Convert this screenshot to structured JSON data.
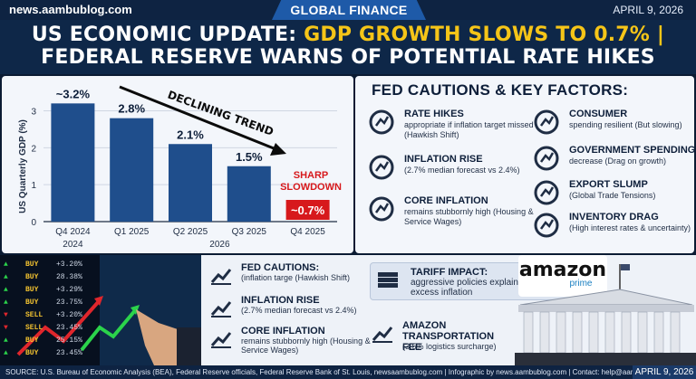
{
  "top_bar": {
    "site": "news.aambublog.com",
    "section": "GLOBAL FINANCE",
    "date": "APRIL 9, 2026"
  },
  "headline": {
    "line1_a": "US ECONOMIC UPDATE: ",
    "line1_b": "GDP GROWTH SLOWS TO 0.7% |",
    "line2": "FEDERAL RESERVE WARNS OF POTENTIAL RATE HIKES"
  },
  "chart_data": {
    "type": "bar",
    "categories": [
      "Q4 2024",
      "Q1 2025",
      "Q2 2025",
      "Q3 2025",
      "Q4 2025"
    ],
    "group_labels": [
      "2024",
      "2026"
    ],
    "values": [
      3.2,
      2.8,
      2.1,
      1.5,
      0.7
    ],
    "value_labels": [
      "~3.2%",
      "2.8%",
      "2.1%",
      "1.5%",
      "~0.7%"
    ],
    "ylabel": "US Quarterly GDP (%)",
    "yticks": [
      0,
      1,
      2,
      3
    ],
    "ylim": [
      0,
      3.6
    ],
    "annotations": [
      "DECLINING TREND",
      "SHARP",
      "SLOWDOWN"
    ],
    "colors": {
      "bar": "#1f4e8c",
      "highlight": "#d7191c",
      "trend": "#0b0b0b"
    }
  },
  "factors": {
    "title": "FED CAUTIONS & KEY FACTORS:",
    "items": [
      {
        "title": "RATE HIKES",
        "desc": "appropriate if inflation target missed (Hawkish Shift)",
        "icon": "gavel-icon"
      },
      {
        "title": "CONSUMER",
        "desc": "spending resilient (But slowing)",
        "icon": "people-icon"
      },
      {
        "title": "INFLATION RISE",
        "desc": "(2.7% median forecast vs 2.4%)",
        "icon": "compass-icon"
      },
      {
        "title": "GOVERNMENT SPENDING",
        "desc": "decrease (Drag on growth)",
        "icon": "map-pin-icon"
      },
      {
        "title": "EXPORT SLUMP",
        "desc": "(Global Trade Tensions)",
        "icon": "globe-icon"
      },
      {
        "title": "CORE INFLATION",
        "desc": "remains stubbornly high (Housing & Service Wages)",
        "icon": "trend-up-icon"
      },
      {
        "title": "INVENTORY DRAG",
        "desc": "(High interest rates & uncertainty)",
        "icon": "oil-rig-icon"
      }
    ]
  },
  "tariff": {
    "title": "TARIFF IMPACT:",
    "desc": "aggressive policies explain near half of excess inflation",
    "icon": "coins-icon"
  },
  "amazon": {
    "logo": "amazon",
    "sub": "prime"
  },
  "lower_items": [
    {
      "title": "FED CAUTIONS:",
      "desc": "(inflation targe (Hawkish Shift)",
      "icon": "gavel-icon"
    },
    {
      "title": "INFLATION RISE",
      "desc": "(2.7% median forecast vs 2.4%)",
      "icon": "trend-up-icon"
    },
    {
      "title": "CORE INFLATION",
      "desc": "remains stubbornly high (Housing & Service Wages)",
      "icon": "trend-up-icon"
    },
    {
      "title": "AMAZON TRANSPORTATION FEE",
      "desc": "(3.5% logistics surcharge)",
      "icon": "dollar-chart-icon"
    }
  ],
  "ticker": {
    "rows": [
      {
        "side": "BUY",
        "val": "+3.20%"
      },
      {
        "side": "BUY",
        "val": "28.38%"
      },
      {
        "side": "BUY",
        "val": "+3.29%"
      },
      {
        "side": "BUY",
        "val": "23.75%"
      },
      {
        "side": "SELL",
        "val": "+3.20%"
      },
      {
        "side": "SELL",
        "val": "23.45%"
      },
      {
        "side": "BUY",
        "val": "25.15%"
      },
      {
        "side": "BUY",
        "val": "23.45%"
      }
    ]
  },
  "footer": {
    "text": "SOURCE: U.S. Bureau of Economic Analysis (BEA), Federal Reserve officials, Federal Reserve Bank of St. Louis, newsaambublog.com | Infographic by news.aambublog.com | Contact: help@aambublog.com",
    "date": "APRIL 9, 2026"
  }
}
